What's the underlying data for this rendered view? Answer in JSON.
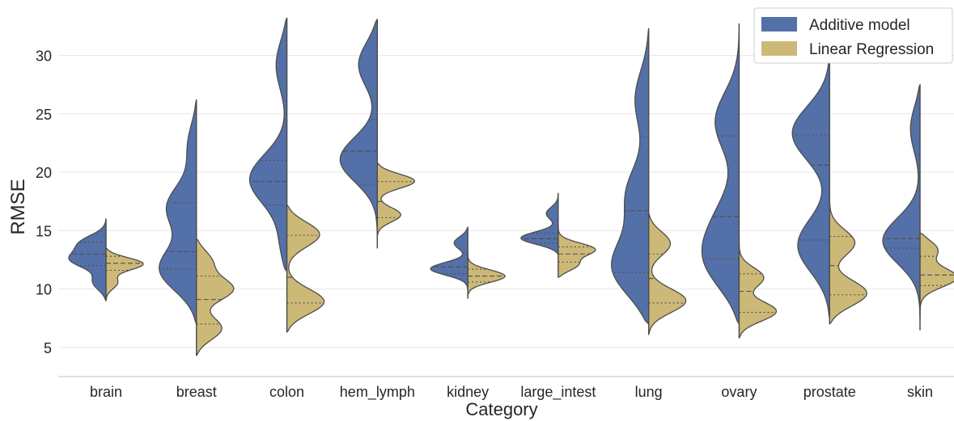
{
  "chart_data": {
    "type": "violin",
    "split": true,
    "title": "",
    "xlabel": "Category",
    "ylabel": "RMSE",
    "ylim": [
      2.5,
      33.5
    ],
    "yticks": [
      5,
      10,
      15,
      20,
      25,
      30
    ],
    "grid": "horizontal",
    "legend_position": "top-right",
    "categories": [
      "brain",
      "breast",
      "colon",
      "hem_lymph",
      "kidney",
      "large_intest",
      "lung",
      "ovary",
      "prostate",
      "skin"
    ],
    "series": [
      {
        "name": "Additive model",
        "color": "#5470a8",
        "side": "left",
        "violins": [
          {
            "min": 9.0,
            "max": 16.0,
            "q1": 12.0,
            "median": 13.0,
            "q3": 14.0,
            "peaks": [
              [
                12.5,
                0.9
              ],
              [
                14.0,
                0.7
              ],
              [
                10.5,
                0.4
              ]
            ]
          },
          {
            "min": 7.0,
            "max": 26.2,
            "q1": 11.7,
            "median": 13.2,
            "q3": 17.4,
            "peaks": [
              [
                11.5,
                1.0
              ],
              [
                17.0,
                0.7
              ],
              [
                22.5,
                0.25
              ]
            ]
          },
          {
            "min": 11.5,
            "max": 33.2,
            "q1": 17.2,
            "median": 19.2,
            "q3": 21.0,
            "peaks": [
              [
                19.3,
                1.0
              ],
              [
                29.5,
                0.35
              ],
              [
                13.5,
                0.25
              ]
            ]
          },
          {
            "min": 13.5,
            "max": 33.1,
            "q1": 18.9,
            "median": 21.8,
            "q3": 24.5,
            "peaks": [
              [
                21.0,
                1.0
              ],
              [
                29.5,
                0.6
              ]
            ]
          },
          {
            "min": 9.8,
            "max": 15.3,
            "q1": 11.3,
            "median": 11.9,
            "q3": 13.1,
            "peaks": [
              [
                11.7,
                1.0
              ],
              [
                14.0,
                0.4
              ]
            ]
          },
          {
            "min": 13.0,
            "max": 18.2,
            "q1": 13.9,
            "median": 14.3,
            "q3": 14.8,
            "peaks": [
              [
                14.3,
                1.0
              ],
              [
                16.5,
                0.3
              ]
            ]
          },
          {
            "min": 7.0,
            "max": 32.3,
            "q1": 11.4,
            "median": 16.7,
            "q3": 23.0,
            "peaks": [
              [
                11.5,
                1.0
              ],
              [
                18.0,
                0.5
              ],
              [
                26.5,
                0.35
              ]
            ]
          },
          {
            "min": 7.0,
            "max": 32.7,
            "q1": 12.6,
            "median": 16.2,
            "q3": 23.1,
            "peaks": [
              [
                12.0,
                1.0
              ],
              [
                24.5,
                0.7
              ],
              [
                16.0,
                0.5
              ]
            ]
          },
          {
            "min": 7.5,
            "max": 31.0,
            "q1": 14.2,
            "median": 20.6,
            "q3": 23.2,
            "peaks": [
              [
                23.5,
                1.0
              ],
              [
                13.5,
                0.9
              ]
            ]
          },
          {
            "min": 7.5,
            "max": 27.5,
            "q1": 13.5,
            "median": 14.3,
            "q3": 21.5,
            "peaks": [
              [
                14.0,
                1.0
              ],
              [
                24.0,
                0.3
              ]
            ]
          }
        ]
      },
      {
        "name": "Linear Regression",
        "color": "#cdb977",
        "side": "right",
        "violins": [
          {
            "min": 9.0,
            "max": 13.5,
            "q1": 11.6,
            "median": 12.2,
            "q3": 12.8,
            "peaks": [
              [
                12.2,
                1.0
              ],
              [
                10.5,
                0.3
              ]
            ]
          },
          {
            "min": 4.3,
            "max": 14.3,
            "q1": 7.0,
            "median": 9.1,
            "q3": 11.1,
            "peaks": [
              [
                10.0,
                1.0
              ],
              [
                6.5,
                0.8
              ],
              [
                12.5,
                0.5
              ]
            ]
          },
          {
            "min": 6.3,
            "max": 17.2,
            "q1": 8.8,
            "median": 11.0,
            "q3": 14.6,
            "peaks": [
              [
                8.8,
                0.9
              ],
              [
                14.8,
                0.8
              ]
            ]
          },
          {
            "min": 14.5,
            "max": 20.8,
            "q1": 16.1,
            "median": 17.5,
            "q3": 19.2,
            "peaks": [
              [
                19.3,
                1.0
              ],
              [
                16.3,
                0.6
              ]
            ]
          },
          {
            "min": 9.2,
            "max": 13.0,
            "q1": 10.6,
            "median": 11.1,
            "q3": 11.7,
            "peaks": [
              [
                11.1,
                1.0
              ]
            ]
          },
          {
            "min": 11.0,
            "max": 15.5,
            "q1": 12.3,
            "median": 13.0,
            "q3": 13.6,
            "peaks": [
              [
                13.4,
                1.0
              ],
              [
                12.0,
                0.6
              ]
            ]
          },
          {
            "min": 6.1,
            "max": 16.5,
            "q1": 8.8,
            "median": 10.9,
            "q3": 13.0,
            "peaks": [
              [
                8.9,
                1.0
              ],
              [
                14.0,
                0.6
              ]
            ]
          },
          {
            "min": 5.8,
            "max": 14.5,
            "q1": 8.0,
            "median": 9.8,
            "q3": 11.3,
            "peaks": [
              [
                8.0,
                1.0
              ],
              [
                11.0,
                0.6
              ]
            ]
          },
          {
            "min": 7.0,
            "max": 18.3,
            "q1": 9.5,
            "median": 12.0,
            "q3": 14.5,
            "peaks": [
              [
                9.5,
                1.0
              ],
              [
                14.0,
                0.6
              ]
            ]
          },
          {
            "min": 6.5,
            "max": 14.8,
            "q1": 10.3,
            "median": 11.2,
            "q3": 12.8,
            "peaks": [
              [
                11.0,
                1.0
              ],
              [
                13.5,
                0.6
              ]
            ]
          }
        ]
      }
    ]
  }
}
